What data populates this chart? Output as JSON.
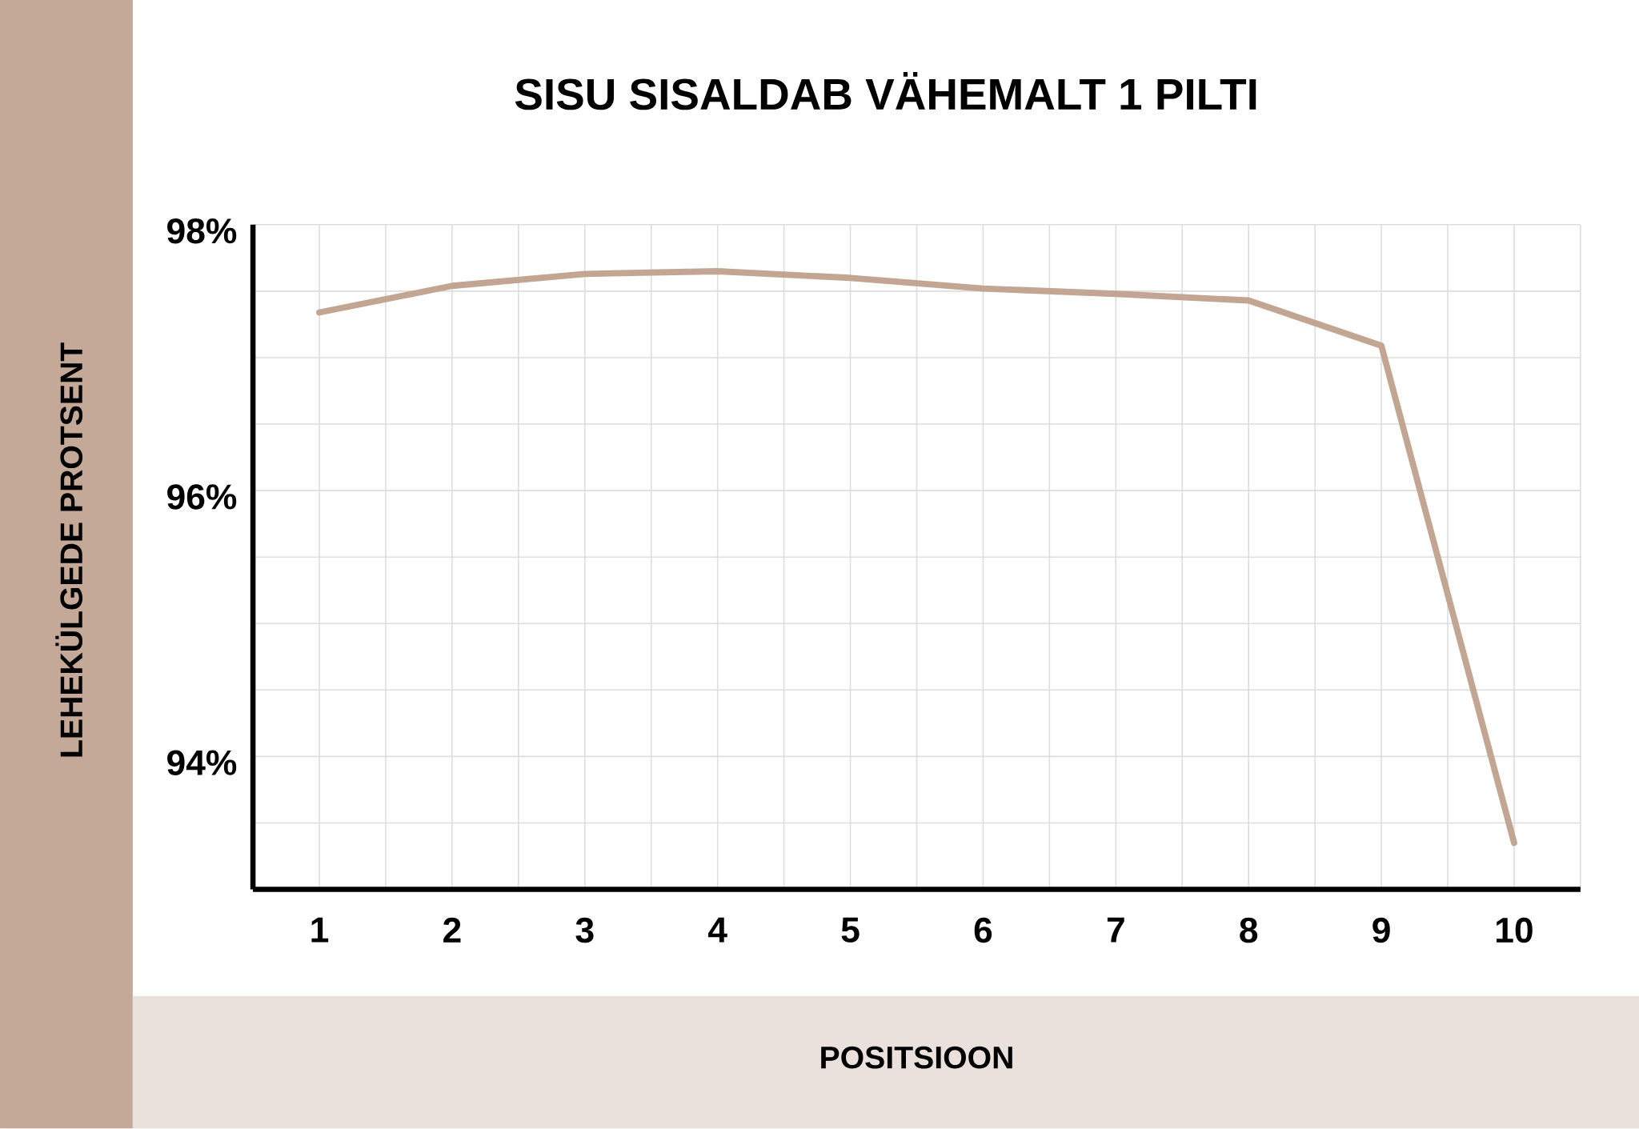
{
  "chart_data": {
    "type": "line",
    "title": "SISU SISALDAB VÄHEMALT 1 PILTI",
    "xlabel": "POSITSIOON",
    "ylabel": "LEHEKÜLGEDE PROTSENT",
    "x": [
      1,
      2,
      3,
      4,
      5,
      6,
      7,
      8,
      9,
      10
    ],
    "series": [
      {
        "color": "#c2a592",
        "values": [
          97.34,
          97.54,
          97.63,
          97.65,
          97.6,
          97.52,
          97.48,
          97.43,
          97.09,
          93.35
        ]
      }
    ],
    "xlim": [
      0.5,
      10.5
    ],
    "xticks": [
      1,
      {
        "value": 1.5,
        "label": null
      },
      2,
      {
        "value": 2.5,
        "label": null
      },
      3,
      {
        "value": 3.5,
        "label": null
      },
      4,
      {
        "value": 4.5,
        "label": null
      },
      5,
      {
        "value": 5.5,
        "label": null
      },
      6,
      {
        "value": 6.5,
        "label": null
      },
      7,
      {
        "value": 7.5,
        "label": null
      },
      8,
      {
        "value": 8.5,
        "label": null
      },
      9,
      {
        "value": 9.5,
        "label": null
      },
      10,
      {
        "value": 10.5,
        "label": null
      }
    ],
    "ylim": [
      93,
      98
    ],
    "yticks": [
      {
        "value": 93.5,
        "label": null
      },
      {
        "value": 94,
        "label": "94%"
      },
      {
        "value": 94.5,
        "label": null
      },
      {
        "value": 95,
        "label": null
      },
      {
        "value": 95.5,
        "label": null
      },
      {
        "value": 96,
        "label": "96%"
      },
      {
        "value": 96.5,
        "label": null
      },
      {
        "value": 97,
        "label": null
      },
      {
        "value": 97.5,
        "label": null
      },
      {
        "value": 98,
        "label": "98%"
      }
    ],
    "grid": true,
    "marker": "none",
    "line_style": "solid"
  }
}
